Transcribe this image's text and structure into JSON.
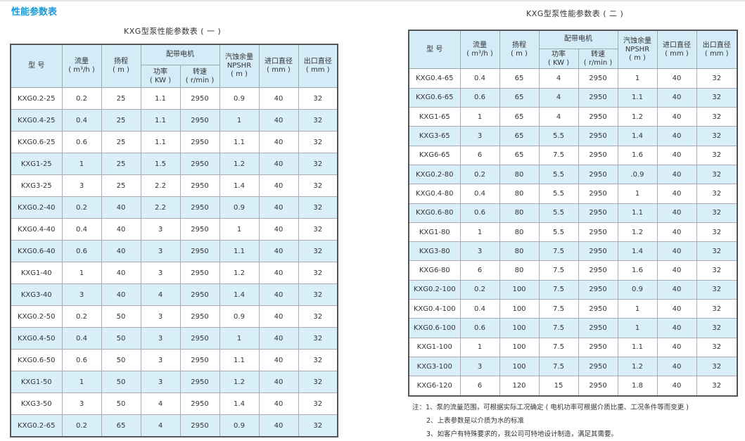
{
  "section_title": "性能参数表",
  "headers": {
    "model": "型 号",
    "flow": "流量",
    "flow_unit": "( m³/h )",
    "head": "扬程",
    "head_unit": "( m )",
    "motor": "配带电机",
    "power": "功率",
    "power_unit": "( KW )",
    "speed": "转速",
    "speed_unit": "( r/min )",
    "npshr": "汽蚀余量",
    "npshr_en": "NPSHR",
    "npshr_unit": "( m )",
    "inlet": "进口直径",
    "inlet_unit": "( mm )",
    "outlet": "出口直径",
    "outlet_unit": "( mm )"
  },
  "table1": {
    "title": "KXG型泵性能参数表 ( 一 )",
    "rows": [
      [
        "KXG0.2-25",
        "0.2",
        "25",
        "1.1",
        "2950",
        "0.9",
        "40",
        "32"
      ],
      [
        "KXG0.4-25",
        "0.4",
        "25",
        "1.1",
        "2950",
        "1",
        "40",
        "32"
      ],
      [
        "KXG0.6-25",
        "0.6",
        "25",
        "1.1",
        "2950",
        "1.1",
        "40",
        "32"
      ],
      [
        "KXG1-25",
        "1",
        "25",
        "1.5",
        "2950",
        "1.2",
        "40",
        "32"
      ],
      [
        "KXG3-25",
        "3",
        "25",
        "2.2",
        "2950",
        "1.4",
        "40",
        "32"
      ],
      [
        "KXG0.2-40",
        "0.2",
        "40",
        "2.2",
        "2950",
        "0.9",
        "40",
        "32"
      ],
      [
        "KXG0.4-40",
        "0.4",
        "40",
        "3",
        "2950",
        "1",
        "40",
        "32"
      ],
      [
        "KXG0.6-40",
        "0.6",
        "40",
        "3",
        "2950",
        "1.1",
        "40",
        "32"
      ],
      [
        "KXG1-40",
        "1",
        "40",
        "3",
        "2950",
        "1.2",
        "40",
        "32"
      ],
      [
        "KXG3-40",
        "3",
        "40",
        "4",
        "2950",
        "1.4",
        "40",
        "32"
      ],
      [
        "KXG0.2-50",
        "0.2",
        "50",
        "3",
        "2950",
        "0.9",
        "40",
        "32"
      ],
      [
        "KXG0.4-50",
        "0.4",
        "50",
        "3",
        "2950",
        "1",
        "40",
        "32"
      ],
      [
        "KXG0.6-50",
        "0.6",
        "50",
        "3",
        "2950",
        "1.1",
        "40",
        "32"
      ],
      [
        "KXG1-50",
        "1",
        "50",
        "3",
        "2950",
        "1.2",
        "40",
        "32"
      ],
      [
        "KXG3-50",
        "3",
        "50",
        "4",
        "2950",
        "1.4",
        "40",
        "32"
      ],
      [
        "KXG0.2-65",
        "0.2",
        "65",
        "4",
        "2950",
        "0.9",
        "40",
        "32"
      ]
    ]
  },
  "table2": {
    "title": "KXG型泵性能参数表 ( 二 )",
    "rows": [
      [
        "KXG0.4-65",
        "0.4",
        "65",
        "4",
        "2950",
        "1",
        "40",
        "32"
      ],
      [
        "KXG0.6-65",
        "0.6",
        "65",
        "4",
        "2950",
        "1.1",
        "40",
        "32"
      ],
      [
        "KXG1-65",
        "1",
        "65",
        "4",
        "2950",
        "1.2",
        "40",
        "32"
      ],
      [
        "KXG3-65",
        "3",
        "65",
        "5.5",
        "2950",
        "1.4",
        "40",
        "32"
      ],
      [
        "KXG6-65",
        "6",
        "65",
        "7.5",
        "2950",
        "1.6",
        "40",
        "32"
      ],
      [
        "KXG0.2-80",
        "0.2",
        "80",
        "5.5",
        "2950",
        ".0.9",
        "40",
        "32"
      ],
      [
        "KXG0.4-80",
        "0.4",
        "80",
        "5.5",
        "2950",
        "1",
        "40",
        "32"
      ],
      [
        "KXG0.6-80",
        "0.6",
        "80",
        "5.5",
        "2950",
        "1.1",
        "40",
        "32"
      ],
      [
        "KXG1-80",
        "1",
        "80",
        "5.5",
        "2950",
        "1.2",
        "40",
        "32"
      ],
      [
        "KXG3-80",
        "3",
        "80",
        "7.5",
        "2950",
        "1.4",
        "40",
        "32"
      ],
      [
        "KXG6-80",
        "6",
        "80",
        "7.5",
        "2950",
        "1.6",
        "40",
        "32"
      ],
      [
        "KXG0.2-100",
        "0.2",
        "100",
        "7.5",
        "2950",
        "0.9",
        "40",
        "32"
      ],
      [
        "KXG0.4-100",
        "0.4",
        "100",
        "7.5",
        "2950",
        "1",
        "40",
        "32"
      ],
      [
        "KXG0.6-100",
        "0.6",
        "100",
        "7.5",
        "2950",
        "1",
        "40",
        "32"
      ],
      [
        "KXG1-100",
        "1",
        "100",
        "7.5",
        "2950",
        "1.1",
        "40",
        "32"
      ],
      [
        "KXG3-100",
        "3",
        "100",
        "7.5",
        "2950",
        "1.2",
        "40",
        "32"
      ],
      [
        "KXG6-120",
        "6",
        "120",
        "15",
        "2950",
        "1.8",
        "40",
        "32"
      ]
    ]
  },
  "notes": [
    "注：1、泵的流量范围，可根据实际工况确定 ( 电机功率可根据介质比重、工况条件等而变更 )",
    "2、上表参数是以介质为水的标准",
    "3、如客户有特殊要求的，我公司可特地设计制造，满足其需要。"
  ]
}
